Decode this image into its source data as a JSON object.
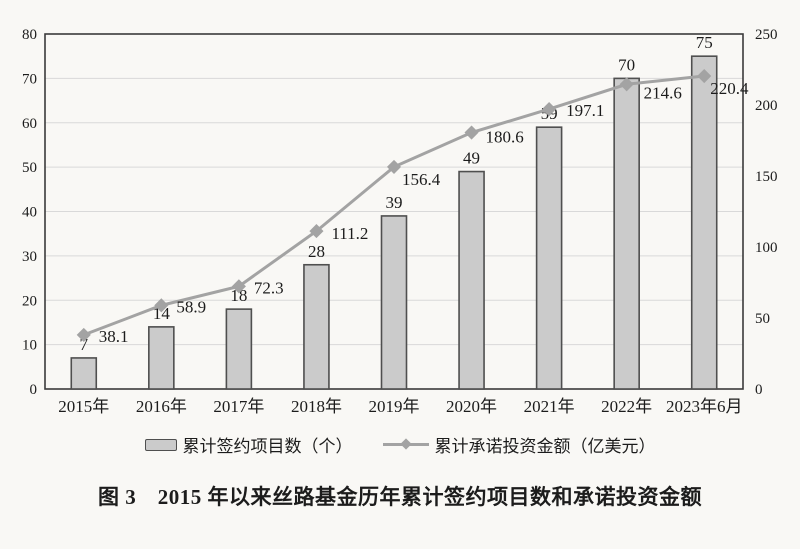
{
  "figure": {
    "caption": "图 3　2015 年以来丝路基金历年累计签约项目数和承诺投资金额"
  },
  "chart_data": {
    "type": "combo-bar-line",
    "categories": [
      "2015年",
      "2016年",
      "2017年",
      "2018年",
      "2019年",
      "2020年",
      "2021年",
      "2022年",
      "2023年6月"
    ],
    "series": [
      {
        "name": "累计签约项目数（个）",
        "type": "bar",
        "axis": "left",
        "values": [
          7,
          14,
          18,
          28,
          39,
          49,
          59,
          70,
          75
        ]
      },
      {
        "name": "累计承诺投资金额（亿美元）",
        "type": "line",
        "axis": "right",
        "values": [
          38.1,
          58.9,
          72.3,
          111.2,
          156.4,
          180.6,
          197.1,
          214.6,
          220.4
        ]
      }
    ],
    "left_axis": {
      "min": 0,
      "max": 80,
      "step": 10
    },
    "right_axis": {
      "min": 0,
      "max": 250,
      "step": 50
    },
    "grid": true,
    "legend_position": "bottom",
    "data_labels": true
  },
  "colors": {
    "background": "#f9f8f5",
    "bar_fill": "#cbcbcb",
    "bar_stroke": "#4f4f4f",
    "line": "#a3a3a3",
    "grid": "#d9d9d9",
    "axis_frame": "#3b3b3b",
    "text": "#1c1c1c"
  }
}
